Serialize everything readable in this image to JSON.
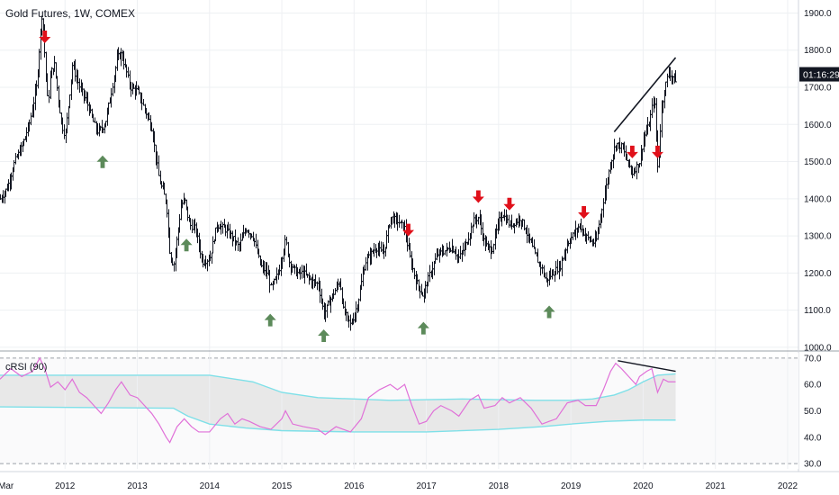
{
  "header": {
    "title": "Gold Futures, 1W, COMEX"
  },
  "price_badge": "01:16:29",
  "indicator": {
    "label": "cRSI (90)"
  },
  "chart_data": [
    {
      "type": "candlestick",
      "title": "Gold Futures, 1W, COMEX",
      "y_ticks": [
        "1000.0",
        "1100.0",
        "1200.0",
        "1300.0",
        "1400.0",
        "1500.0",
        "1600.0",
        "1700.0",
        "1800.0",
        "1900.0"
      ],
      "ylim": [
        995,
        1935
      ],
      "x_ticks": [
        "Mar",
        "2012",
        "2013",
        "2014",
        "2015",
        "2016",
        "2017",
        "2018",
        "2019",
        "2020",
        "2021",
        "2022"
      ],
      "xlim": [
        2011.1,
        2022.15
      ],
      "grid": true,
      "price_path": [
        [
          2011.1,
          1400
        ],
        [
          2011.2,
          1430
        ],
        [
          2011.3,
          1500
        ],
        [
          2011.4,
          1540
        ],
        [
          2011.5,
          1600
        ],
        [
          2011.6,
          1700
        ],
        [
          2011.65,
          1830
        ],
        [
          2011.68,
          1900
        ],
        [
          2011.72,
          1780
        ],
        [
          2011.76,
          1650
        ],
        [
          2011.8,
          1740
        ],
        [
          2011.85,
          1760
        ],
        [
          2011.9,
          1680
        ],
        [
          2011.95,
          1600
        ],
        [
          2012.0,
          1570
        ],
        [
          2012.1,
          1760
        ],
        [
          2012.2,
          1700
        ],
        [
          2012.3,
          1660
        ],
        [
          2012.4,
          1600
        ],
        [
          2012.45,
          1580
        ],
        [
          2012.55,
          1600
        ],
        [
          2012.65,
          1700
        ],
        [
          2012.72,
          1780
        ],
        [
          2012.78,
          1790
        ],
        [
          2012.85,
          1740
        ],
        [
          2012.9,
          1700
        ],
        [
          2013.0,
          1690
        ],
        [
          2013.1,
          1640
        ],
        [
          2013.2,
          1590
        ],
        [
          2013.3,
          1450
        ],
        [
          2013.4,
          1390
        ],
        [
          2013.45,
          1250
        ],
        [
          2013.5,
          1220
        ],
        [
          2013.6,
          1380
        ],
        [
          2013.65,
          1400
        ],
        [
          2013.72,
          1330
        ],
        [
          2013.8,
          1320
        ],
        [
          2013.9,
          1230
        ],
        [
          2014.0,
          1240
        ],
        [
          2014.1,
          1330
        ],
        [
          2014.2,
          1320
        ],
        [
          2014.3,
          1300
        ],
        [
          2014.4,
          1270
        ],
        [
          2014.5,
          1320
        ],
        [
          2014.6,
          1300
        ],
        [
          2014.7,
          1220
        ],
        [
          2014.8,
          1200
        ],
        [
          2014.85,
          1160
        ],
        [
          2014.95,
          1200
        ],
        [
          2015.05,
          1290
        ],
        [
          2015.1,
          1230
        ],
        [
          2015.2,
          1200
        ],
        [
          2015.3,
          1200
        ],
        [
          2015.4,
          1180
        ],
        [
          2015.5,
          1170
        ],
        [
          2015.58,
          1090
        ],
        [
          2015.7,
          1140
        ],
        [
          2015.8,
          1180
        ],
        [
          2015.85,
          1100
        ],
        [
          2015.95,
          1060
        ],
        [
          2016.05,
          1120
        ],
        [
          2016.15,
          1230
        ],
        [
          2016.3,
          1270
        ],
        [
          2016.4,
          1250
        ],
        [
          2016.5,
          1350
        ],
        [
          2016.6,
          1340
        ],
        [
          2016.7,
          1320
        ],
        [
          2016.75,
          1260
        ],
        [
          2016.85,
          1180
        ],
        [
          2016.95,
          1140
        ],
        [
          2017.05,
          1200
        ],
        [
          2017.15,
          1250
        ],
        [
          2017.25,
          1260
        ],
        [
          2017.35,
          1270
        ],
        [
          2017.45,
          1240
        ],
        [
          2017.55,
          1280
        ],
        [
          2017.65,
          1340
        ],
        [
          2017.72,
          1350
        ],
        [
          2017.8,
          1280
        ],
        [
          2017.9,
          1260
        ],
        [
          2018.0,
          1340
        ],
        [
          2018.05,
          1360
        ],
        [
          2018.15,
          1330
        ],
        [
          2018.25,
          1340
        ],
        [
          2018.3,
          1350
        ],
        [
          2018.4,
          1300
        ],
        [
          2018.5,
          1250
        ],
        [
          2018.6,
          1210
        ],
        [
          2018.65,
          1180
        ],
        [
          2018.75,
          1200
        ],
        [
          2018.85,
          1220
        ],
        [
          2018.95,
          1280
        ],
        [
          2019.05,
          1310
        ],
        [
          2019.12,
          1330
        ],
        [
          2019.2,
          1300
        ],
        [
          2019.3,
          1280
        ],
        [
          2019.35,
          1290
        ],
        [
          2019.45,
          1400
        ],
        [
          2019.55,
          1500
        ],
        [
          2019.62,
          1550
        ],
        [
          2019.7,
          1540
        ],
        [
          2019.78,
          1500
        ],
        [
          2019.85,
          1470
        ],
        [
          2019.95,
          1500
        ],
        [
          2020.0,
          1560
        ],
        [
          2020.08,
          1600
        ],
        [
          2020.15,
          1680
        ],
        [
          2020.2,
          1470
        ],
        [
          2020.25,
          1640
        ],
        [
          2020.3,
          1700
        ],
        [
          2020.35,
          1740
        ],
        [
          2020.4,
          1730
        ],
        [
          2020.45,
          1720
        ]
      ],
      "annotations": {
        "red_down_arrows": [
          2011.72,
          2016.75,
          2017.72,
          2018.15,
          2019.18,
          2019.85,
          2020.2
        ],
        "green_up_arrows": [
          2012.52,
          2013.68,
          2014.84,
          2015.58,
          2016.96,
          2018.7
        ],
        "trendline": [
          [
            2019.6,
            1580
          ],
          [
            2020.45,
            1780
          ]
        ]
      }
    },
    {
      "type": "line",
      "name": "cRSI (90)",
      "y_ticks": [
        "30.0",
        "40.0",
        "50.0",
        "60.0",
        "70.0"
      ],
      "ylim": [
        28,
        72
      ],
      "upper_band": [
        [
          2011.1,
          63.5
        ],
        [
          2014.0,
          63.5
        ],
        [
          2014.6,
          61
        ],
        [
          2015.0,
          57
        ],
        [
          2015.5,
          55
        ],
        [
          2016.5,
          54
        ],
        [
          2017.5,
          54.5
        ],
        [
          2018.5,
          54
        ],
        [
          2019.0,
          54
        ],
        [
          2019.3,
          54.5
        ],
        [
          2019.6,
          56
        ],
        [
          2019.8,
          58
        ],
        [
          2020.0,
          61
        ],
        [
          2020.2,
          63.5
        ],
        [
          2020.45,
          64
        ]
      ],
      "lower_band": [
        [
          2011.1,
          51.5
        ],
        [
          2013.5,
          51
        ],
        [
          2013.7,
          48
        ],
        [
          2014.0,
          45
        ],
        [
          2014.5,
          43.5
        ],
        [
          2015.0,
          42.5
        ],
        [
          2016.0,
          42
        ],
        [
          2017.0,
          42
        ],
        [
          2018.0,
          43
        ],
        [
          2018.6,
          44
        ],
        [
          2019.0,
          45
        ],
        [
          2019.5,
          46
        ],
        [
          2020.0,
          46.5
        ],
        [
          2020.45,
          46.5
        ]
      ],
      "crsi": [
        [
          2011.1,
          62
        ],
        [
          2011.25,
          66
        ],
        [
          2011.4,
          63
        ],
        [
          2011.55,
          65
        ],
        [
          2011.65,
          70
        ],
        [
          2011.72,
          66
        ],
        [
          2011.8,
          59
        ],
        [
          2011.9,
          61
        ],
        [
          2012.0,
          58
        ],
        [
          2012.1,
          62
        ],
        [
          2012.2,
          57
        ],
        [
          2012.3,
          55
        ],
        [
          2012.4,
          52
        ],
        [
          2012.5,
          49
        ],
        [
          2012.6,
          53
        ],
        [
          2012.7,
          58
        ],
        [
          2012.78,
          61
        ],
        [
          2012.9,
          56
        ],
        [
          2013.0,
          55
        ],
        [
          2013.1,
          52
        ],
        [
          2013.2,
          49
        ],
        [
          2013.3,
          45
        ],
        [
          2013.4,
          40
        ],
        [
          2013.45,
          38
        ],
        [
          2013.55,
          44
        ],
        [
          2013.65,
          47
        ],
        [
          2013.75,
          44
        ],
        [
          2013.85,
          42
        ],
        [
          2014.0,
          42
        ],
        [
          2014.15,
          47
        ],
        [
          2014.25,
          49
        ],
        [
          2014.35,
          45
        ],
        [
          2014.45,
          47
        ],
        [
          2014.55,
          46
        ],
        [
          2014.7,
          44
        ],
        [
          2014.85,
          43
        ],
        [
          2015.0,
          47
        ],
        [
          2015.05,
          50
        ],
        [
          2015.15,
          45
        ],
        [
          2015.3,
          44
        ],
        [
          2015.5,
          43
        ],
        [
          2015.6,
          41
        ],
        [
          2015.75,
          44
        ],
        [
          2015.85,
          43
        ],
        [
          2015.95,
          42
        ],
        [
          2016.1,
          47
        ],
        [
          2016.2,
          55
        ],
        [
          2016.35,
          58
        ],
        [
          2016.5,
          60
        ],
        [
          2016.6,
          58
        ],
        [
          2016.7,
          60
        ],
        [
          2016.8,
          52
        ],
        [
          2016.9,
          45
        ],
        [
          2017.0,
          46
        ],
        [
          2017.1,
          50
        ],
        [
          2017.2,
          52
        ],
        [
          2017.35,
          50
        ],
        [
          2017.45,
          48
        ],
        [
          2017.6,
          54
        ],
        [
          2017.72,
          56
        ],
        [
          2017.8,
          51
        ],
        [
          2017.95,
          52
        ],
        [
          2018.05,
          55
        ],
        [
          2018.15,
          53
        ],
        [
          2018.3,
          55
        ],
        [
          2018.45,
          51
        ],
        [
          2018.6,
          45
        ],
        [
          2018.7,
          46
        ],
        [
          2018.8,
          47
        ],
        [
          2018.95,
          53
        ],
        [
          2019.1,
          54
        ],
        [
          2019.2,
          52
        ],
        [
          2019.35,
          52
        ],
        [
          2019.45,
          58
        ],
        [
          2019.55,
          65
        ],
        [
          2019.62,
          68
        ],
        [
          2019.7,
          66
        ],
        [
          2019.8,
          63
        ],
        [
          2019.9,
          60
        ],
        [
          2019.95,
          63
        ],
        [
          2020.05,
          65
        ],
        [
          2020.12,
          66
        ],
        [
          2020.2,
          57
        ],
        [
          2020.28,
          62
        ],
        [
          2020.35,
          61
        ],
        [
          2020.45,
          61
        ]
      ],
      "divergence_line": [
        [
          2019.65,
          69
        ],
        [
          2020.45,
          65
        ]
      ],
      "ref_levels": [
        70,
        30
      ],
      "grid": true
    }
  ],
  "colors": {
    "bars": "#131722",
    "red_arrow": "#e0101a",
    "green_arrow": "#5c8a5a",
    "trendline": "#131722",
    "crsi_line": "#e070d8",
    "bands": "#7ee0e8",
    "band_fill": "#e8e8e8",
    "badge_bg": "#131722",
    "grid": "#eef0f3"
  }
}
